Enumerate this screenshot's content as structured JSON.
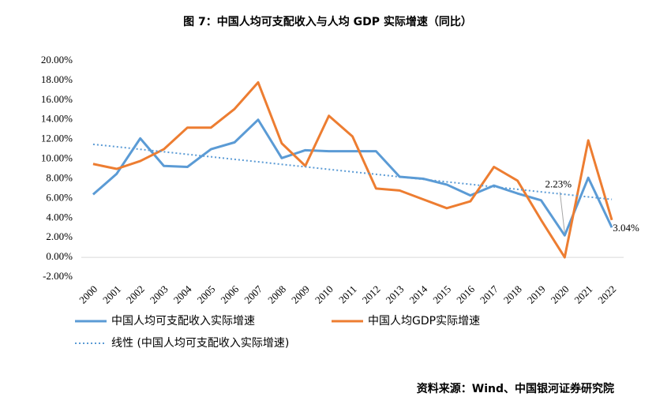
{
  "chart_data": {
    "type": "line",
    "title": "图 7：中国人均可支配收入与人均 GDP 实际增速（同比）",
    "source": "资料来源：Wind、中国银河证券研究院",
    "categories": [
      "2000",
      "2001",
      "2002",
      "2003",
      "2004",
      "2005",
      "2006",
      "2007",
      "2008",
      "2009",
      "2010",
      "2011",
      "2012",
      "2013",
      "2014",
      "2015",
      "2016",
      "2017",
      "2018",
      "2019",
      "2020",
      "2021",
      "2022"
    ],
    "series": [
      {
        "name": "中国人均可支配收入实际增速",
        "color": "#5b9bd5",
        "style": "solid",
        "values": [
          6.4,
          8.5,
          12.1,
          9.3,
          9.2,
          11.0,
          11.7,
          14.0,
          10.1,
          10.9,
          10.8,
          10.8,
          10.8,
          8.2,
          8.0,
          7.4,
          6.3,
          7.3,
          6.5,
          5.8,
          2.23,
          8.1,
          3.04
        ],
        "value_labels": [
          null,
          null,
          null,
          null,
          null,
          null,
          null,
          null,
          null,
          null,
          null,
          null,
          null,
          null,
          null,
          null,
          null,
          null,
          null,
          null,
          "2.23%",
          null,
          "3.04%"
        ]
      },
      {
        "name": "中国人均GDP实际增速",
        "color": "#ed7d31",
        "style": "solid",
        "values": [
          9.5,
          9.0,
          9.8,
          11.0,
          13.2,
          13.2,
          15.1,
          17.8,
          11.6,
          9.3,
          14.4,
          12.3,
          7.0,
          6.8,
          5.9,
          5.0,
          5.7,
          9.2,
          7.8,
          3.8,
          0.0,
          11.9,
          3.8
        ]
      },
      {
        "name": "线性 (中国人均可支配收入实际增速)",
        "color": "#5b9bd5",
        "style": "dotted",
        "values": [
          11.5,
          11.25,
          10.99,
          10.74,
          10.48,
          10.23,
          9.97,
          9.72,
          9.46,
          9.21,
          8.95,
          8.7,
          8.45,
          8.19,
          7.94,
          7.68,
          7.43,
          7.17,
          6.92,
          6.66,
          6.41,
          6.15,
          5.9
        ]
      }
    ],
    "ylim": [
      -2,
      20
    ],
    "yticks": [
      {
        "value": -2,
        "label": "-2.00%"
      },
      {
        "value": 0,
        "label": "0.00%"
      },
      {
        "value": 2,
        "label": "2.00%"
      },
      {
        "value": 4,
        "label": "4.00%"
      },
      {
        "value": 6,
        "label": "6.00%"
      },
      {
        "value": 8,
        "label": "8.00%"
      },
      {
        "value": 10,
        "label": "10.00%"
      },
      {
        "value": 12,
        "label": "12.00%"
      },
      {
        "value": 14,
        "label": "14.00%"
      },
      {
        "value": 16,
        "label": "16.00%"
      },
      {
        "value": 18,
        "label": "18.00%"
      },
      {
        "value": 20,
        "label": "20.00%"
      }
    ],
    "grid": false,
    "legend": "bottom"
  }
}
